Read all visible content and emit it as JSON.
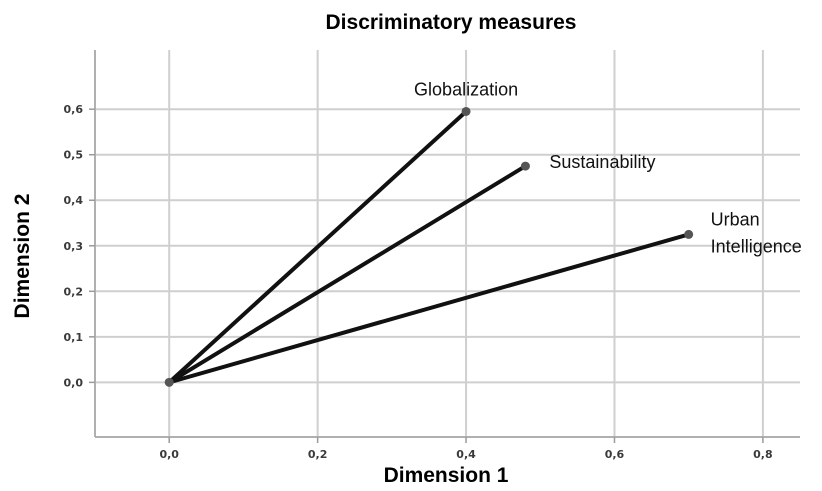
{
  "chart_data": {
    "type": "scatter",
    "title": "Discriminatory measures",
    "xlabel": "Dimension 1",
    "ylabel": "Dimension 2",
    "xlim": [
      -0.1,
      0.85
    ],
    "ylim": [
      -0.12,
      0.73
    ],
    "xticks": [
      "0,0",
      "0,2",
      "0,4",
      "0,6",
      "0,8"
    ],
    "yticks": [
      "0,0",
      "0,1",
      "0,2",
      "0,3",
      "0,4",
      "0,5",
      "0,6"
    ],
    "grid": true,
    "origin": [
      0.0,
      0.0
    ],
    "series": [
      {
        "points": [
          {
            "label": "Globalization",
            "x": 0.4,
            "y": 0.595
          },
          {
            "label": "Sustainability",
            "x": 0.48,
            "y": 0.475
          },
          {
            "label": "Urban\nIntelligence",
            "x": 0.7,
            "y": 0.325
          }
        ]
      }
    ],
    "colors": {
      "vectors": "#111111",
      "grid": "#cfcfcf"
    }
  }
}
